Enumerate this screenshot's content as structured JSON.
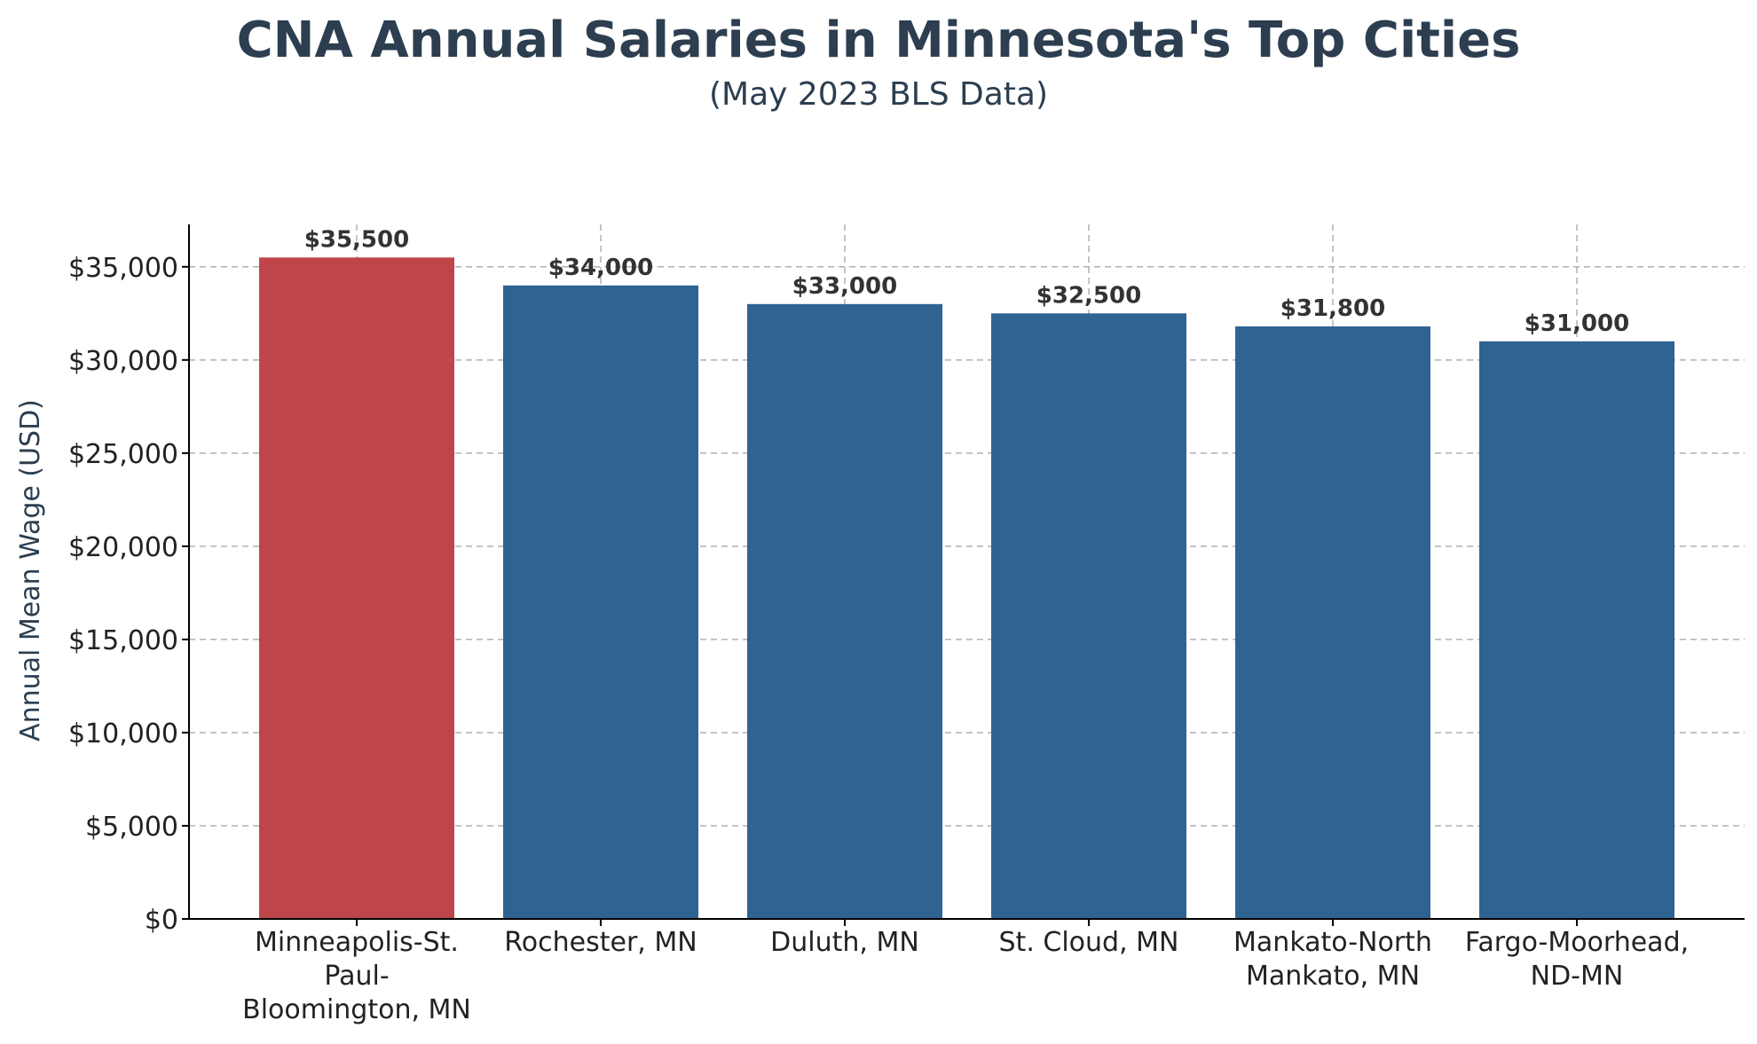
{
  "chart_data": {
    "type": "bar",
    "title": "CNA Annual Salaries in Minnesota's Top Cities",
    "subtitle": "(May 2023 BLS Data)",
    "xlabel": "",
    "ylabel": "Annual Mean Wage (USD)",
    "categories": [
      "Minneapolis-St. Paul-Bloomington, MN",
      "Rochester, MN",
      "Duluth, MN",
      "St. Cloud, MN",
      "Mankato-North Mankato, MN",
      "Fargo-Moorhead, ND-MN"
    ],
    "category_lines": [
      [
        "Minneapolis-St.",
        "Paul-",
        "Bloomington, MN"
      ],
      [
        "Rochester, MN"
      ],
      [
        "Duluth, MN"
      ],
      [
        "St. Cloud, MN"
      ],
      [
        "Mankato-North",
        "Mankato, MN"
      ],
      [
        "Fargo-Moorhead,",
        "ND-MN"
      ]
    ],
    "values": [
      35500,
      34000,
      33000,
      32500,
      31800,
      31000
    ],
    "value_labels": [
      "$35,500",
      "$34,000",
      "$33,000",
      "$32,500",
      "$31,800",
      "$31,000"
    ],
    "yticks": [
      0,
      5000,
      10000,
      15000,
      20000,
      25000,
      30000,
      35000
    ],
    "ytick_labels": [
      "$0",
      "$5,000",
      "$10,000",
      "$15,000",
      "$20,000",
      "$25,000",
      "$30,000",
      "$35,000"
    ],
    "ylim": [
      0,
      37275
    ],
    "grid": true,
    "colors": {
      "highlight": "#c0454a",
      "default": "#2f6391",
      "title": "#2c3e50"
    },
    "highlight_index": 0
  }
}
